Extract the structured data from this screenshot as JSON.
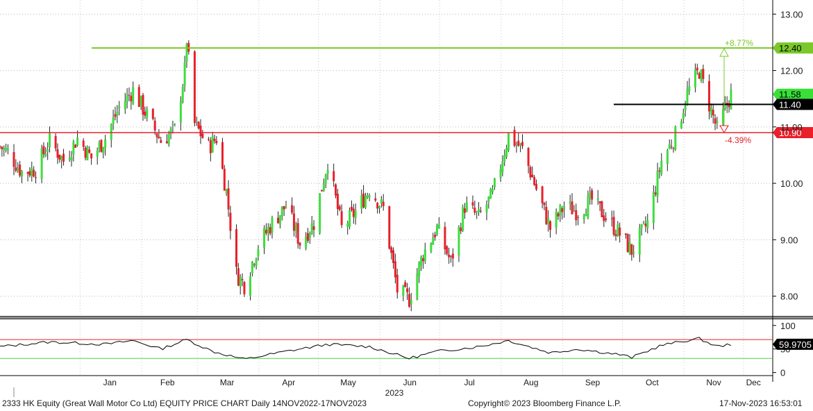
{
  "colors": {
    "up": "#3fdc3f",
    "down": "#e8202a",
    "support": "#e8202a",
    "resistance": "#7ac82a",
    "current": "#000000",
    "rsi": "#000000"
  },
  "chart_data": {
    "type": "candlestick",
    "price_axis": {
      "ylim": [
        7.65,
        13.25
      ],
      "ticks": [
        "13.00",
        "12.00",
        "11.00",
        "10.00",
        "9.00",
        "8.00"
      ]
    },
    "levels": [
      {
        "name": "resistance",
        "value": 12.4,
        "label": "12.40",
        "pct": "+8.77%"
      },
      {
        "name": "current",
        "value": 11.4,
        "label": "11.40"
      },
      {
        "name": "support",
        "value": 10.9,
        "label": "10.90",
        "pct": "-4.39%"
      },
      {
        "name": "last",
        "value": 11.58,
        "label": "11.58"
      }
    ],
    "months": [
      "Jan",
      "Feb",
      "Mar",
      "Apr",
      "May",
      "Jun",
      "Jul",
      "Aug",
      "Sep",
      "Oct",
      "Nov",
      "Dec"
    ],
    "year": "2023",
    "close_path": [
      [
        "2022-11-14",
        10.65
      ],
      [
        "2022-11-18",
        10.55
      ],
      [
        "2022-11-25",
        10.2
      ],
      [
        "2022-12-02",
        10.25
      ],
      [
        "2022-12-09",
        10.75
      ],
      [
        "2022-12-16",
        10.4
      ],
      [
        "2022-12-23",
        10.8
      ],
      [
        "2022-12-30",
        10.45
      ],
      [
        "2023-01-06",
        10.8
      ],
      [
        "2023-01-13",
        11.35
      ],
      [
        "2023-01-20",
        11.65
      ],
      [
        "2023-01-27",
        11.2
      ],
      [
        "2023-02-03",
        10.75
      ],
      [
        "2023-02-10",
        10.95
      ],
      [
        "2023-02-15",
        12.0
      ],
      [
        "2023-02-16",
        12.55
      ],
      [
        "2023-02-20",
        11.05
      ],
      [
        "2023-02-27",
        10.65
      ],
      [
        "2023-03-03",
        10.8
      ],
      [
        "2023-03-08",
        9.85
      ],
      [
        "2023-03-13",
        8.4
      ],
      [
        "2023-03-17",
        8.2
      ],
      [
        "2023-03-24",
        8.9
      ],
      [
        "2023-03-31",
        9.3
      ],
      [
        "2023-04-07",
        9.6
      ],
      [
        "2023-04-14",
        8.95
      ],
      [
        "2023-04-21",
        9.3
      ],
      [
        "2023-04-28",
        10.4
      ],
      [
        "2023-05-05",
        9.2
      ],
      [
        "2023-05-12",
        9.5
      ],
      [
        "2023-05-19",
        9.9
      ],
      [
        "2023-05-26",
        9.55
      ],
      [
        "2023-06-02",
        8.1
      ],
      [
        "2023-06-08",
        7.95
      ],
      [
        "2023-06-15",
        8.75
      ],
      [
        "2023-06-22",
        9.2
      ],
      [
        "2023-06-29",
        8.6
      ],
      [
        "2023-07-06",
        9.6
      ],
      [
        "2023-07-13",
        9.4
      ],
      [
        "2023-07-20",
        9.8
      ],
      [
        "2023-07-28",
        10.85
      ],
      [
        "2023-08-04",
        10.6
      ],
      [
        "2023-08-11",
        9.9
      ],
      [
        "2023-08-18",
        9.2
      ],
      [
        "2023-08-25",
        9.6
      ],
      [
        "2023-09-01",
        9.5
      ],
      [
        "2023-09-08",
        9.7
      ],
      [
        "2023-09-15",
        9.4
      ],
      [
        "2023-09-22",
        9.1
      ],
      [
        "2023-09-28",
        8.8
      ],
      [
        "2023-10-06",
        9.3
      ],
      [
        "2023-10-13",
        10.4
      ],
      [
        "2023-10-20",
        10.85
      ],
      [
        "2023-10-26",
        11.6
      ],
      [
        "2023-11-01",
        12.0
      ],
      [
        "2023-11-06",
        11.4
      ],
      [
        "2023-11-10",
        10.95
      ],
      [
        "2023-11-17",
        11.58
      ]
    ],
    "rsi": {
      "ylim": [
        -5,
        110
      ],
      "ticks": [
        "100",
        "50",
        "0"
      ],
      "upper": 70,
      "lower": 30,
      "last": "59.9705",
      "path": [
        [
          "2022-11-14",
          55
        ],
        [
          "2022-12-09",
          65
        ],
        [
          "2023-01-06",
          60
        ],
        [
          "2023-01-20",
          68
        ],
        [
          "2023-02-03",
          50
        ],
        [
          "2023-02-16",
          70
        ],
        [
          "2023-03-01",
          45
        ],
        [
          "2023-03-17",
          28
        ],
        [
          "2023-04-07",
          45
        ],
        [
          "2023-04-28",
          60
        ],
        [
          "2023-05-19",
          55
        ],
        [
          "2023-06-08",
          30
        ],
        [
          "2023-06-22",
          45
        ],
        [
          "2023-07-13",
          55
        ],
        [
          "2023-07-28",
          68
        ],
        [
          "2023-08-18",
          42
        ],
        [
          "2023-09-01",
          50
        ],
        [
          "2023-09-22",
          38
        ],
        [
          "2023-09-28",
          32
        ],
        [
          "2023-10-13",
          58
        ],
        [
          "2023-10-26",
          68
        ],
        [
          "2023-11-01",
          72
        ],
        [
          "2023-11-10",
          55
        ],
        [
          "2023-11-17",
          60
        ]
      ]
    }
  },
  "footer": {
    "left": "2333 HK Equity (Great Wall Motor Co Ltd) EQUITY PRICE CHART  Daily 14NOV2022-17NOV2023",
    "center": "Copyright© 2023 Bloomberg Finance L.P.",
    "right": "17-Nov-2023 16:53:01"
  }
}
